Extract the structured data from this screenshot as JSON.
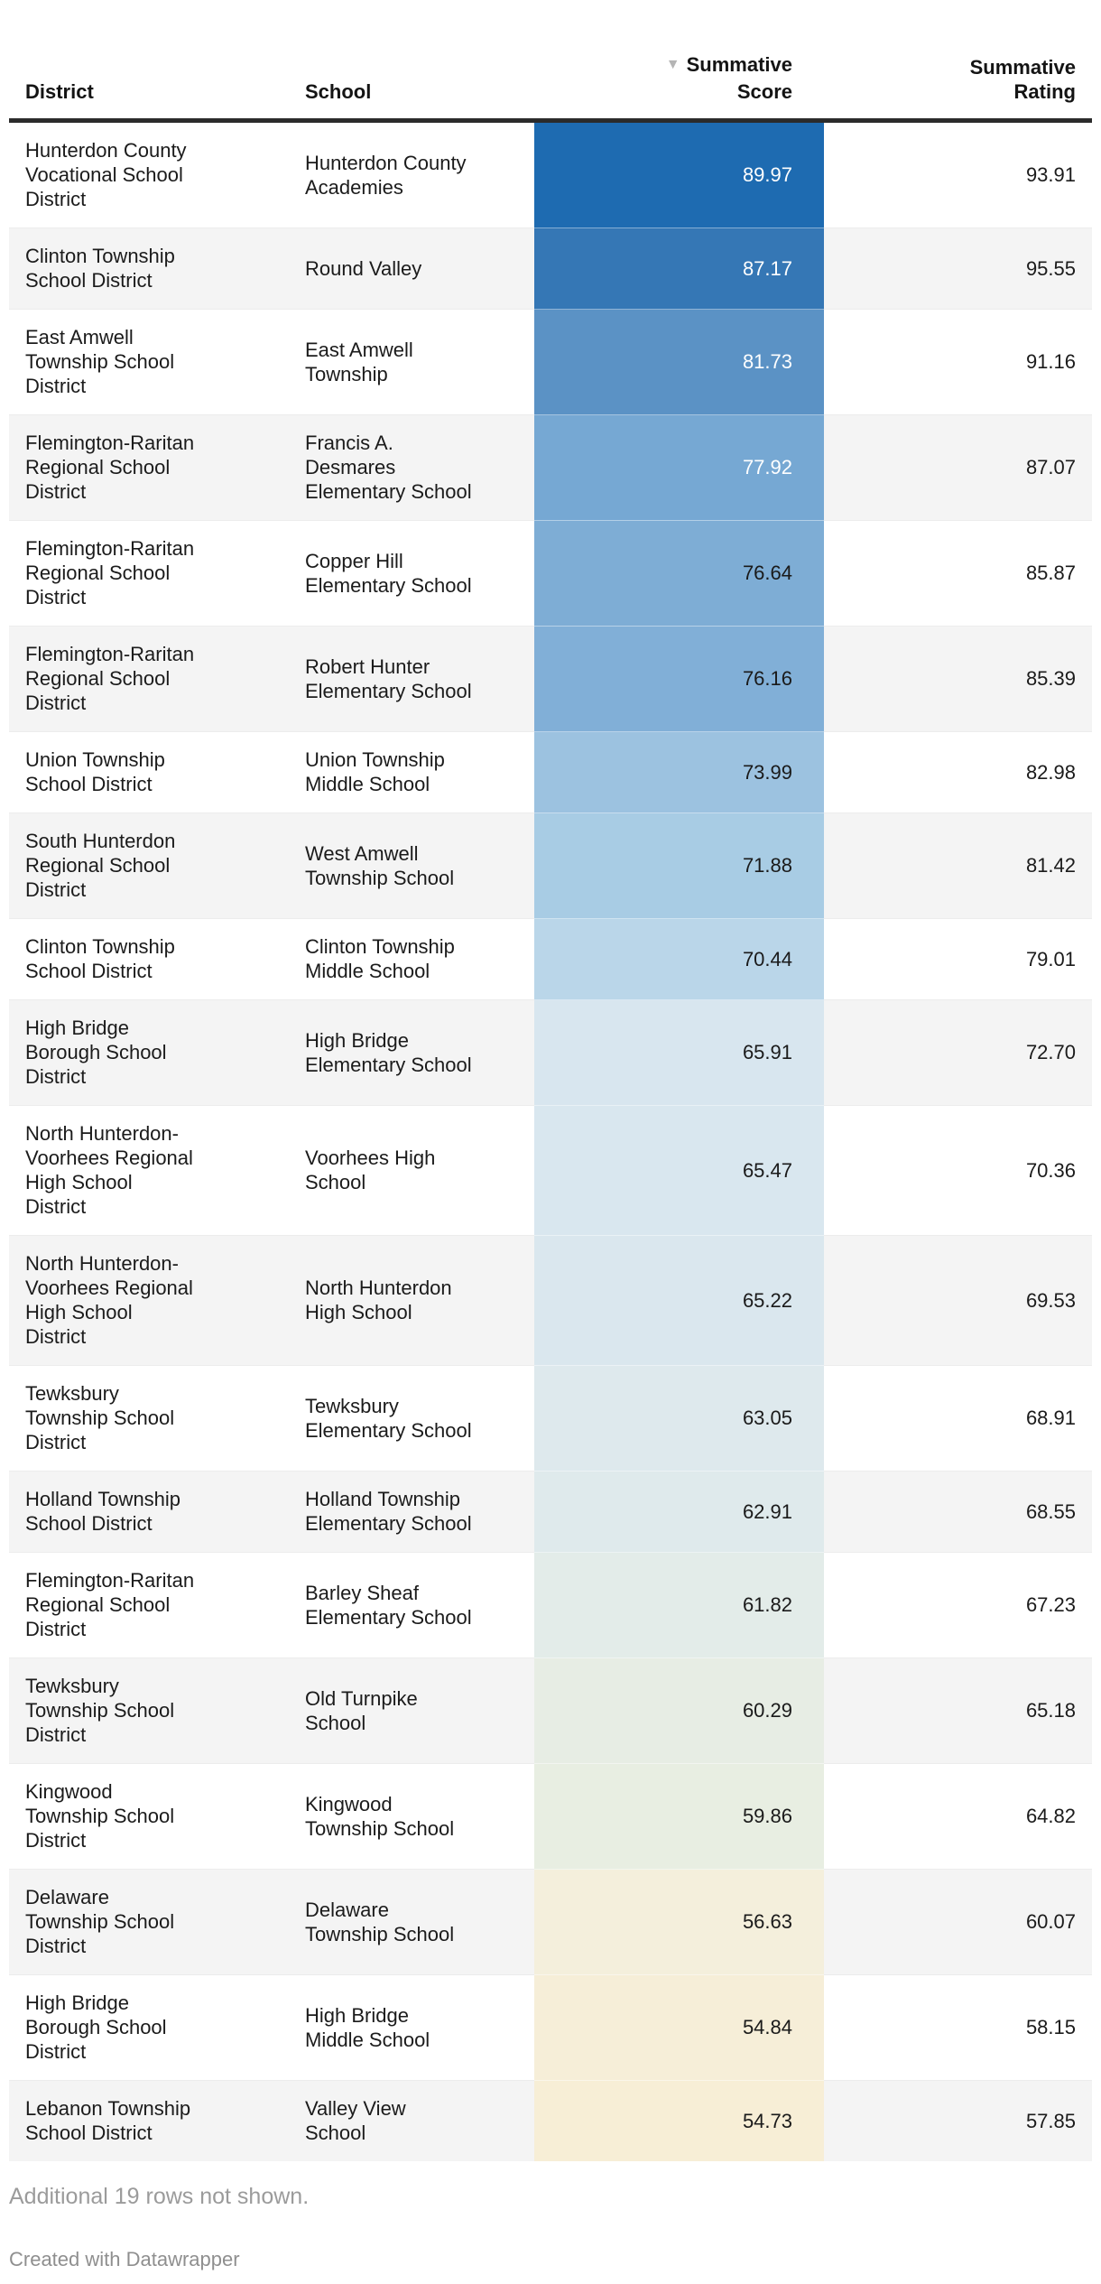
{
  "table": {
    "sort_indicator": "▼",
    "columns": [
      {
        "id": "district",
        "label": "District",
        "align": "left"
      },
      {
        "id": "school",
        "label": "School",
        "align": "left"
      },
      {
        "id": "score",
        "label": "Summative\nScore",
        "align": "right",
        "sorted_descending": true
      },
      {
        "id": "rating",
        "label": "Summative\nRating",
        "align": "right"
      }
    ],
    "rows": [
      {
        "district": "Hunterdon County\nVocational School\nDistrict",
        "school": "Hunterdon County\nAcademies",
        "score": "89.97",
        "rating": "93.91",
        "score_bg": "#1e6bb1",
        "score_text": "#ffffff"
      },
      {
        "district": "Clinton Township\nSchool District",
        "school": "Round Valley",
        "score": "87.17",
        "rating": "95.55",
        "score_bg": "#3577b5",
        "score_text": "#ffffff"
      },
      {
        "district": "East Amwell\nTownship School\nDistrict",
        "school": "East Amwell\nTownship",
        "score": "81.73",
        "rating": "91.16",
        "score_bg": "#5b92c5",
        "score_text": "#ffffff"
      },
      {
        "district": "Flemington-Raritan\nRegional School\nDistrict",
        "school": "Francis A.\nDesmares\nElementary School",
        "score": "77.92",
        "rating": "87.07",
        "score_bg": "#76a8d3",
        "score_text": "#ffffff"
      },
      {
        "district": "Flemington-Raritan\nRegional School\nDistrict",
        "school": "Copper Hill\nElementary School",
        "score": "76.64",
        "rating": "85.87",
        "score_bg": "#7eadd5",
        "score_text": "#1a1a1a"
      },
      {
        "district": "Flemington-Raritan\nRegional School\nDistrict",
        "school": "Robert Hunter\nElementary School",
        "score": "76.16",
        "rating": "85.39",
        "score_bg": "#81afd7",
        "score_text": "#1a1a1a"
      },
      {
        "district": "Union Township\nSchool District",
        "school": "Union Township\nMiddle School",
        "score": "73.99",
        "rating": "82.98",
        "score_bg": "#9cc2e0",
        "score_text": "#1a1a1a"
      },
      {
        "district": "South Hunterdon\nRegional School\nDistrict",
        "school": "West Amwell\nTownship School",
        "score": "71.88",
        "rating": "81.42",
        "score_bg": "#a8cce4",
        "score_text": "#1a1a1a"
      },
      {
        "district": "Clinton Township\nSchool District",
        "school": "Clinton Township\nMiddle School",
        "score": "70.44",
        "rating": "79.01",
        "score_bg": "#bad6e9",
        "score_text": "#1a1a1a"
      },
      {
        "district": "High Bridge\nBorough School\nDistrict",
        "school": "High Bridge\nElementary School",
        "score": "65.91",
        "rating": "72.70",
        "score_bg": "#d8e6ef",
        "score_text": "#1a1a1a"
      },
      {
        "district": "North Hunterdon-\nVoorhees Regional\nHigh School\nDistrict",
        "school": "Voorhees High\nSchool",
        "score": "65.47",
        "rating": "70.36",
        "score_bg": "#d9e7ef",
        "score_text": "#1a1a1a"
      },
      {
        "district": "North Hunterdon-\nVoorhees Regional\nHigh School\nDistrict",
        "school": "North Hunterdon\nHigh School",
        "score": "65.22",
        "rating": "69.53",
        "score_bg": "#dae7ee",
        "score_text": "#1a1a1a"
      },
      {
        "district": "Tewksbury\nTownship School\nDistrict",
        "school": "Tewksbury\nElementary School",
        "score": "63.05",
        "rating": "68.91",
        "score_bg": "#dee9ed",
        "score_text": "#1a1a1a"
      },
      {
        "district": "Holland Township\nSchool District",
        "school": "Holland Township\nElementary School",
        "score": "62.91",
        "rating": "68.55",
        "score_bg": "#dfeaec",
        "score_text": "#1a1a1a"
      },
      {
        "district": "Flemington-Raritan\nRegional School\nDistrict",
        "school": "Barley Sheaf\nElementary School",
        "score": "61.82",
        "rating": "67.23",
        "score_bg": "#e3ece9",
        "score_text": "#1a1a1a"
      },
      {
        "district": "Tewksbury\nTownship School\nDistrict",
        "school": "Old Turnpike\nSchool",
        "score": "60.29",
        "rating": "65.18",
        "score_bg": "#e7ede4",
        "score_text": "#1a1a1a"
      },
      {
        "district": "Kingwood\nTownship School\nDistrict",
        "school": "Kingwood\nTownship School",
        "score": "59.86",
        "rating": "64.82",
        "score_bg": "#e8eee2",
        "score_text": "#1a1a1a"
      },
      {
        "district": "Delaware\nTownship School\nDistrict",
        "school": "Delaware\nTownship School",
        "score": "56.63",
        "rating": "60.07",
        "score_bg": "#f4efdc",
        "score_text": "#1a1a1a"
      },
      {
        "district": "High Bridge\nBorough School\nDistrict",
        "school": "High Bridge\nMiddle School",
        "score": "54.84",
        "rating": "58.15",
        "score_bg": "#f6eed8",
        "score_text": "#1a1a1a"
      },
      {
        "district": "Lebanon Township\nSchool District",
        "school": "Valley View\nSchool",
        "score": "54.73",
        "rating": "57.85",
        "score_bg": "#f7eed6",
        "score_text": "#1a1a1a"
      }
    ]
  },
  "footer": {
    "note": "Additional 19 rows not shown.",
    "credit": "Created with Datawrapper"
  },
  "style_colors": {
    "header_rule": "#2b2b2b",
    "row_stripe": "#f4f4f4",
    "sort_arrow": "#b5b5b5",
    "footer_text": "#9b9b9b",
    "heat_high": "#1e6bb1",
    "heat_low": "#f7eed6"
  },
  "chart_data": {
    "type": "table",
    "title": "",
    "columns": [
      "District",
      "School",
      "Summative Score",
      "Summative Rating"
    ],
    "sorted_by": "Summative Score",
    "sort_order": "descending",
    "heatmap_column": "Summative Score",
    "rows": [
      [
        "Hunterdon County Vocational School District",
        "Hunterdon County Academies",
        89.97,
        93.91
      ],
      [
        "Clinton Township School District",
        "Round Valley",
        87.17,
        95.55
      ],
      [
        "East Amwell Township School District",
        "East Amwell Township",
        81.73,
        91.16
      ],
      [
        "Flemington-Raritan Regional School District",
        "Francis A. Desmares Elementary School",
        77.92,
        87.07
      ],
      [
        "Flemington-Raritan Regional School District",
        "Copper Hill Elementary School",
        76.64,
        85.87
      ],
      [
        "Flemington-Raritan Regional School District",
        "Robert Hunter Elementary School",
        76.16,
        85.39
      ],
      [
        "Union Township School District",
        "Union Township Middle School",
        73.99,
        82.98
      ],
      [
        "South Hunterdon Regional School District",
        "West Amwell Township School",
        71.88,
        81.42
      ],
      [
        "Clinton Township School District",
        "Clinton Township Middle School",
        70.44,
        79.01
      ],
      [
        "High Bridge Borough School District",
        "High Bridge Elementary School",
        65.91,
        72.7
      ],
      [
        "North Hunterdon-Voorhees Regional High School District",
        "Voorhees High School",
        65.47,
        70.36
      ],
      [
        "North Hunterdon-Voorhees Regional High School District",
        "North Hunterdon High School",
        65.22,
        69.53
      ],
      [
        "Tewksbury Township School District",
        "Tewksbury Elementary School",
        63.05,
        68.91
      ],
      [
        "Holland Township School District",
        "Holland Township Elementary School",
        62.91,
        68.55
      ],
      [
        "Flemington-Raritan Regional School District",
        "Barley Sheaf Elementary School",
        61.82,
        67.23
      ],
      [
        "Tewksbury Township School District",
        "Old Turnpike School",
        60.29,
        65.18
      ],
      [
        "Kingwood Township School District",
        "Kingwood Township School",
        59.86,
        64.82
      ],
      [
        "Delaware Township School District",
        "Delaware Township School",
        56.63,
        60.07
      ],
      [
        "High Bridge Borough School District",
        "High Bridge Middle School",
        54.84,
        58.15
      ],
      [
        "Lebanon Township School District",
        "Valley View School",
        54.73,
        57.85
      ]
    ],
    "note": "Additional 19 rows not shown."
  }
}
